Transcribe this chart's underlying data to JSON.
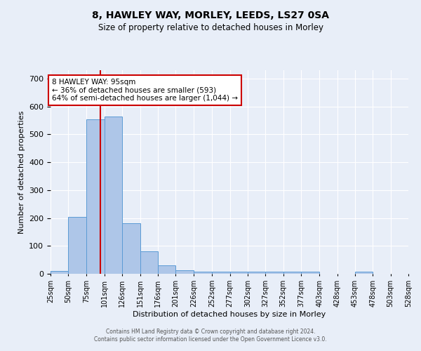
{
  "title": "8, HAWLEY WAY, MORLEY, LEEDS, LS27 0SA",
  "subtitle": "Size of property relative to detached houses in Morley",
  "xlabel": "Distribution of detached houses by size in Morley",
  "ylabel": "Number of detached properties",
  "bin_edges": [
    25,
    50,
    75,
    101,
    126,
    151,
    176,
    201,
    226,
    252,
    277,
    302,
    327,
    352,
    377,
    403,
    428,
    453,
    478,
    503,
    528
  ],
  "bar_heights": [
    11,
    205,
    555,
    565,
    180,
    80,
    30,
    12,
    8,
    7,
    8,
    7,
    7,
    7,
    7,
    0,
    0,
    7,
    0,
    0
  ],
  "bar_color": "#aec6e8",
  "bar_edge_color": "#5b9bd5",
  "vline_x": 95,
  "vline_color": "#cc0000",
  "annotation_line1": "8 HAWLEY WAY: 95sqm",
  "annotation_line2": "← 36% of detached houses are smaller (593)",
  "annotation_line3": "64% of semi-detached houses are larger (1,044) →",
  "annotation_box_color": "#ffffff",
  "annotation_box_edge": "#cc0000",
  "ylim": [
    0,
    730
  ],
  "yticks": [
    0,
    100,
    200,
    300,
    400,
    500,
    600,
    700
  ],
  "xtick_labels": [
    "25sqm",
    "50sqm",
    "75sqm",
    "101sqm",
    "126sqm",
    "151sqm",
    "176sqm",
    "201sqm",
    "226sqm",
    "252sqm",
    "277sqm",
    "302sqm",
    "327sqm",
    "352sqm",
    "377sqm",
    "403sqm",
    "428sqm",
    "453sqm",
    "478sqm",
    "503sqm",
    "528sqm"
  ],
  "footer_text": "Contains HM Land Registry data © Crown copyright and database right 2024.\nContains public sector information licensed under the Open Government Licence v3.0.",
  "bg_color": "#e8eef8",
  "plot_bg_color": "#e8eef8",
  "grid_color": "#ffffff",
  "title_fontsize": 10,
  "subtitle_fontsize": 8.5,
  "ylabel_fontsize": 8,
  "xlabel_fontsize": 8
}
